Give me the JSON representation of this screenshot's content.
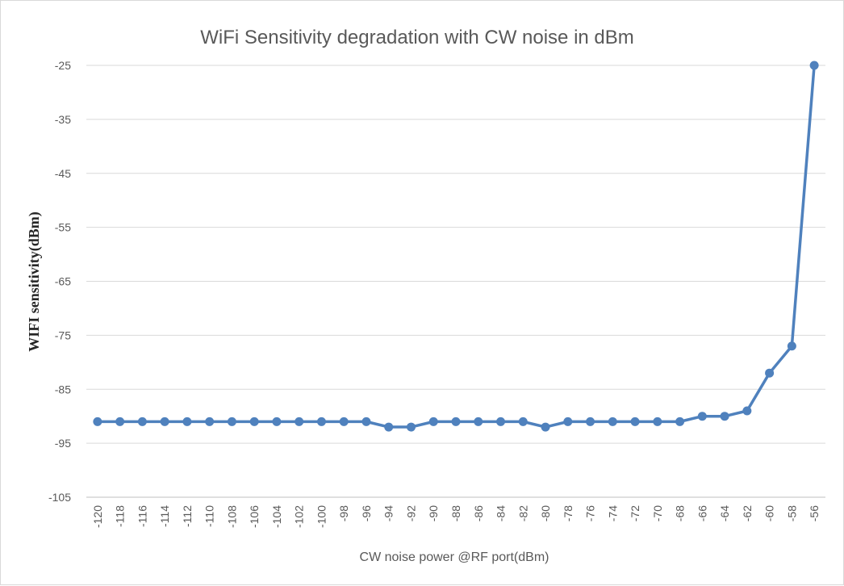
{
  "chart_data": {
    "type": "line",
    "title": "WiFi Sensitivity degradation with CW noise in dBm",
    "xlabel": "CW noise power @RF port(dBm)",
    "ylabel": "WIFI sensitivity(dBm)",
    "ylim": [
      -105,
      -25
    ],
    "yticks": [
      -25,
      -35,
      -45,
      -55,
      -65,
      -75,
      -85,
      -95,
      -105
    ],
    "grid": true,
    "legend": "none",
    "categories": [
      "-120",
      "-118",
      "-116",
      "-114",
      "-112",
      "-110",
      "-108",
      "-106",
      "-104",
      "-102",
      "-100",
      "-98",
      "-96",
      "-94",
      "-92",
      "-90",
      "-88",
      "-86",
      "-84",
      "-82",
      "-80",
      "-78",
      "-76",
      "-74",
      "-72",
      "-70",
      "-68",
      "-66",
      "-64",
      "-62",
      "-60",
      "-58",
      "-56"
    ],
    "series": [
      {
        "values": [
          -91,
          -91,
          -91,
          -91,
          -91,
          -91,
          -91,
          -91,
          -91,
          -91,
          -91,
          -91,
          -91,
          -92,
          -92,
          -91,
          -91,
          -91,
          -91,
          -91,
          -92,
          -91,
          -91,
          -91,
          -91,
          -91,
          -91,
          -90,
          -90,
          -89,
          -82,
          -77,
          -25
        ],
        "color": "#4f81bd"
      }
    ]
  }
}
